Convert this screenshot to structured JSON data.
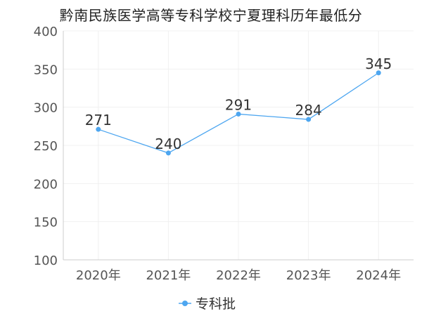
{
  "chart_data": {
    "type": "line",
    "title": "黔南民族医学高等专科学校宁夏理科历年最低分",
    "categories": [
      "2020年",
      "2021年",
      "2022年",
      "2023年",
      "2024年"
    ],
    "series": [
      {
        "name": "专科批",
        "values": [
          271,
          240,
          291,
          284,
          345
        ],
        "color": "#4da6f0"
      }
    ],
    "ylim": [
      100,
      400
    ],
    "yticks": [
      100,
      150,
      200,
      250,
      300,
      350,
      400
    ],
    "xlabel": "",
    "ylabel": "",
    "grid": true,
    "legend_position": "bottom-center"
  }
}
